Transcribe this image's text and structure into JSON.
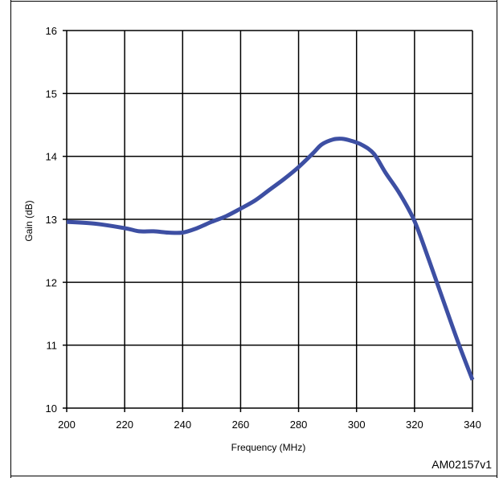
{
  "chart_data": {
    "type": "line",
    "title": "",
    "xlabel": "Frequency (MHz)",
    "ylabel": "Gain (dB)",
    "xlim": [
      200,
      340
    ],
    "ylim": [
      10,
      16
    ],
    "x_ticks": [
      "200",
      "220",
      "240",
      "260",
      "280",
      "300",
      "320",
      "340"
    ],
    "y_ticks": [
      "10",
      "11",
      "12",
      "13",
      "14",
      "15",
      "16"
    ],
    "grid": true,
    "series": [
      {
        "color": "#3d4fa3",
        "x": [
          200,
          210,
          220,
          225,
          230,
          235,
          240,
          245,
          250,
          255,
          260,
          265,
          270,
          275,
          280,
          285,
          288,
          292,
          295,
          298,
          302,
          306,
          310,
          315,
          320,
          325,
          330,
          335,
          340
        ],
        "y": [
          12.96,
          12.93,
          12.86,
          12.81,
          12.81,
          12.79,
          12.79,
          12.86,
          12.96,
          13.05,
          13.17,
          13.3,
          13.47,
          13.64,
          13.83,
          14.05,
          14.19,
          14.27,
          14.28,
          14.25,
          14.18,
          14.04,
          13.74,
          13.4,
          12.97,
          12.35,
          11.7,
          11.05,
          10.45
        ]
      }
    ]
  },
  "figure_code": "AM02157v1"
}
